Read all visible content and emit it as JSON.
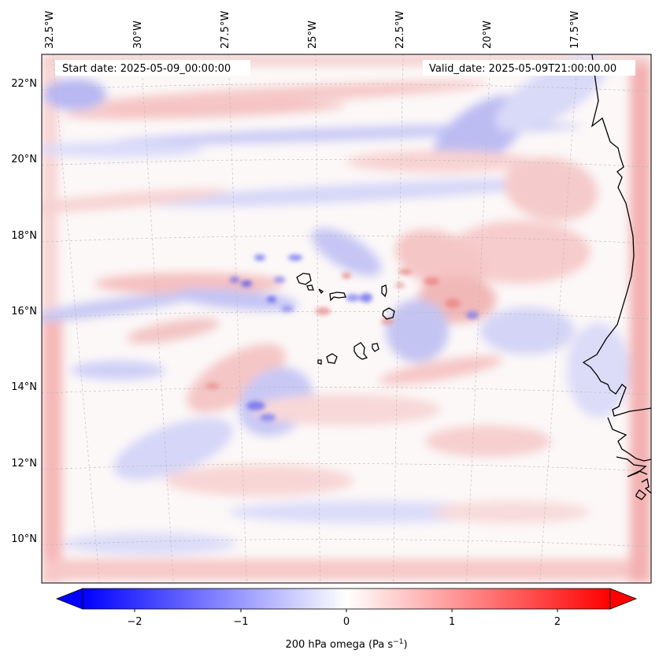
{
  "map": {
    "start_date": "Start date: 2025-05-09_00:00:00",
    "valid_date": "Valid_date: 2025-05-09T21:00:00.00",
    "lon_labels": [
      "32.5°W",
      "30°W",
      "27.5°W",
      "25°W",
      "22.5°W",
      "20°W",
      "17.5°W"
    ],
    "lat_labels": [
      "22°N",
      "20°N",
      "18°N",
      "16°N",
      "14°N",
      "12°N",
      "10°N"
    ],
    "gridlines": true,
    "projection": "Lambert conformal",
    "field": "200 hPa omega",
    "coastline_color": "#000000"
  },
  "colorbar": {
    "label_prefix": "200 hPa omega (Pa s",
    "label_exp": "−1",
    "label_suffix": ")",
    "ticks": [
      "−2",
      "−1",
      "0",
      "1",
      "2"
    ],
    "range": [
      -2.6,
      2.6
    ],
    "extend": "both",
    "colors": {
      "min": "#0000ff",
      "mid": "#ffffff",
      "max": "#ff0000"
    }
  }
}
